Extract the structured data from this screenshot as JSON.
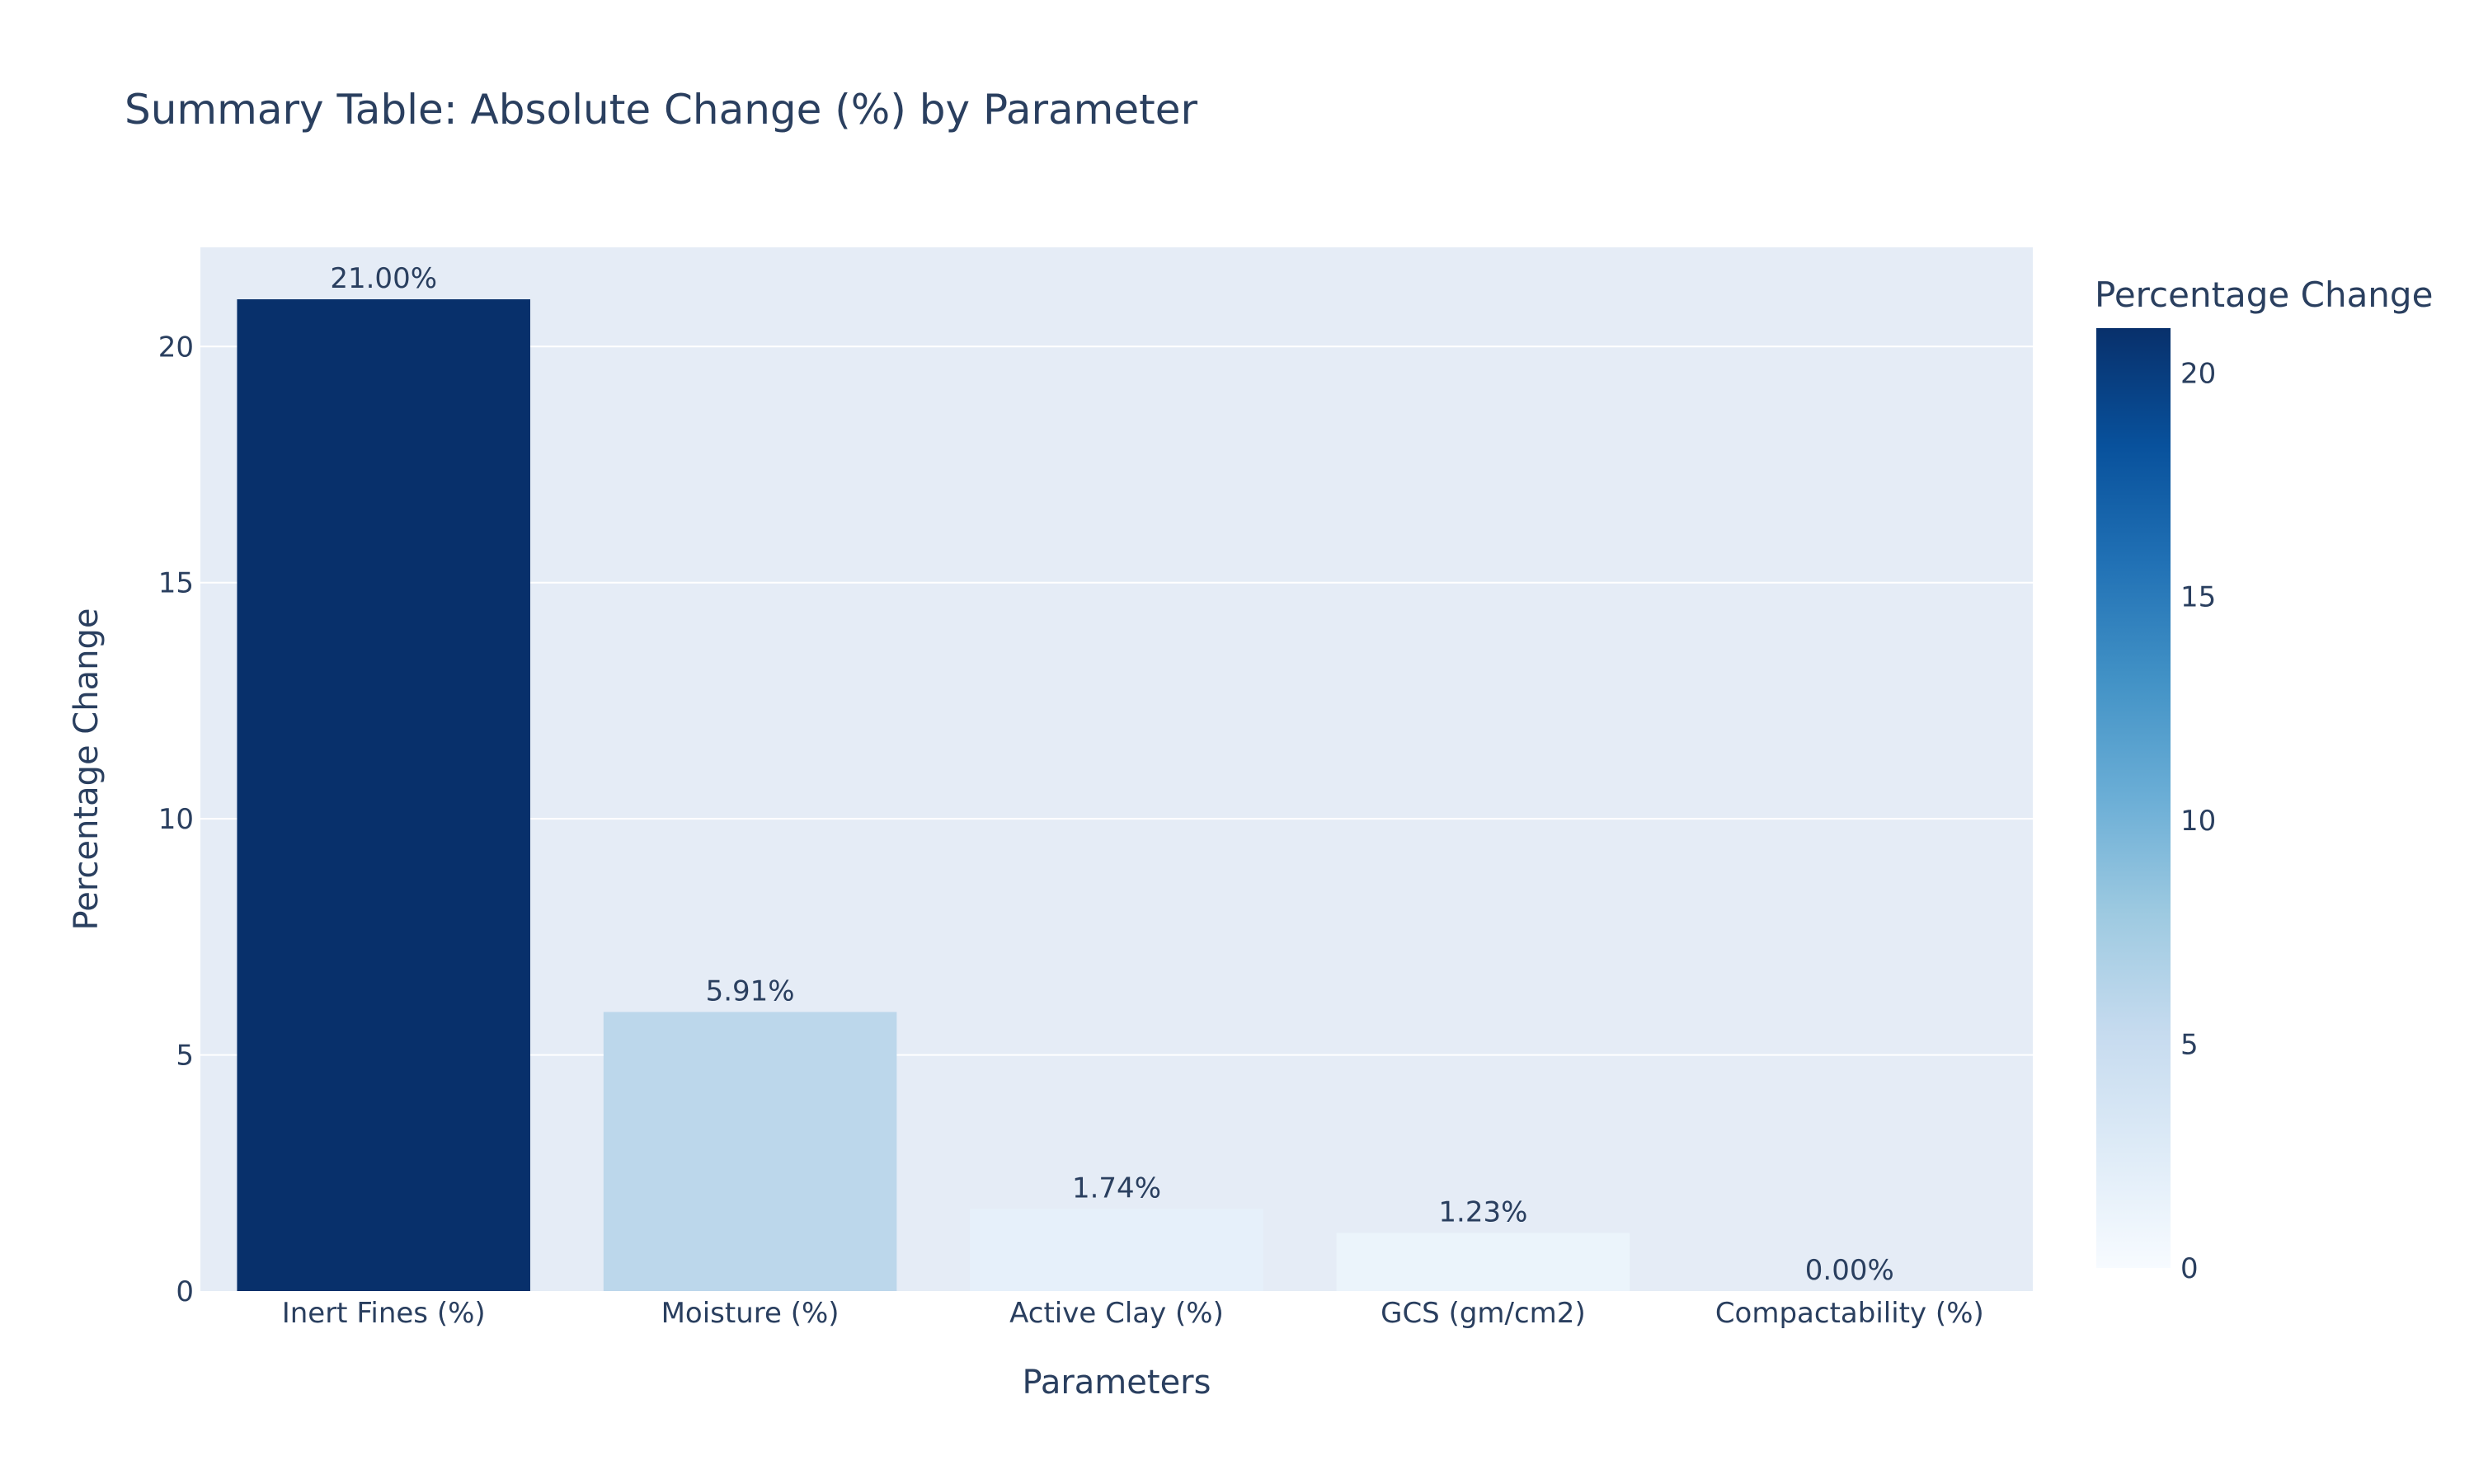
{
  "chart_data": {
    "type": "bar",
    "title": "Summary Table: Absolute Change (%) by Parameter",
    "xlabel": "Parameters",
    "ylabel": "Percentage Change",
    "categories": [
      "Inert Fines (%)",
      "Moisture (%)",
      "Active Clay (%)",
      "GCS (gm/cm2)",
      "Compactability (%)"
    ],
    "values": [
      21.0,
      5.91,
      1.74,
      1.23,
      0.0
    ],
    "data_labels": [
      "21.00%",
      "5.91%",
      "1.74%",
      "1.23%",
      "0.00%"
    ],
    "ylim": [
      0,
      22.1
    ],
    "yticks": [
      0,
      5,
      10,
      15,
      20
    ],
    "grid": true,
    "colorbar": {
      "title": "Percentage Change",
      "range": [
        0,
        21.0
      ],
      "ticks": [
        0,
        5,
        10,
        15,
        20
      ],
      "colorscale": [
        "#f7fbff",
        "#deebf7",
        "#c6dbef",
        "#9ecae1",
        "#6baed6",
        "#4292c6",
        "#2171b5",
        "#08519c",
        "#08306b"
      ]
    },
    "colors": {
      "plot_background": "#e5ecf6",
      "grid": "#ffffff",
      "text": "#2a3f5f"
    }
  }
}
